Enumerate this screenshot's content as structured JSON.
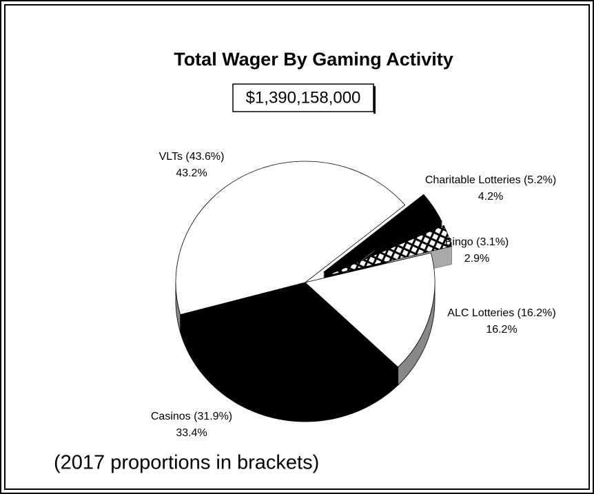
{
  "chart_data": {
    "type": "pie",
    "title": "Total Wager By Gaming Activity",
    "subtitle": "$1,390,158,000",
    "categories": [
      "VLTs (43.6%)",
      "Casinos (31.9%)",
      "ALC Lotteries (16.2%)",
      "Bingo (3.1%)",
      "Charitable Lotteries (5.2%)"
    ],
    "values": [
      43.2,
      33.4,
      16.2,
      2.9,
      4.2
    ],
    "value_labels": [
      "43.2%",
      "33.4%",
      "16.2%",
      "2.9%",
      "4.2%"
    ],
    "colors": [
      "#ffffff",
      "#000000",
      "#ffffff",
      "url(#hatch)",
      "#000000"
    ],
    "exploded": [
      false,
      false,
      false,
      true,
      true
    ],
    "note": "(2017 proportions in brackets)"
  }
}
